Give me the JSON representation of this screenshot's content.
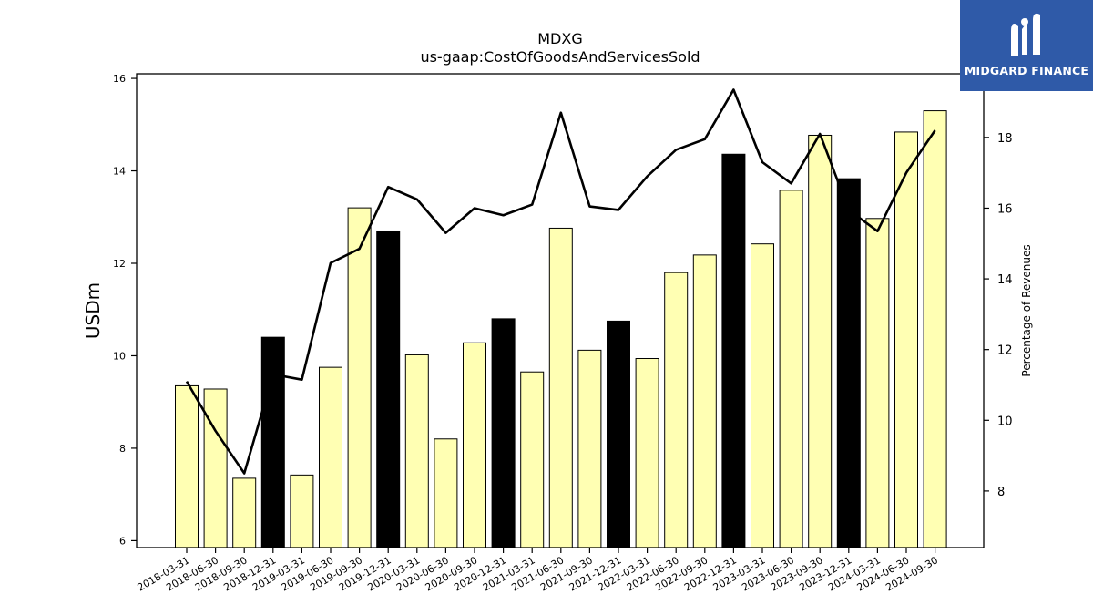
{
  "brand": {
    "name": "MIDGARD FINANCE",
    "bg_color": "#2f5aa8"
  },
  "chart_data": {
    "type": "bar",
    "title": "MDXG",
    "subtitle": "us-gaap:CostOfGoodsAndServicesSold",
    "ylabel": "USDm",
    "y2label": "Percentage of Revenues",
    "ylim": [
      5.85,
      16.1
    ],
    "y2lim": [
      6.4,
      19.8
    ],
    "yticks": [
      6,
      8,
      10,
      12,
      14,
      16
    ],
    "y2ticks": [
      8,
      10,
      12,
      14,
      16,
      18
    ],
    "categories": [
      "2018-03-31",
      "2018-06-30",
      "2018-09-30",
      "2018-12-31",
      "2019-03-31",
      "2019-06-30",
      "2019-09-30",
      "2019-12-31",
      "2020-03-31",
      "2020-06-30",
      "2020-09-30",
      "2020-12-31",
      "2021-03-31",
      "2021-06-30",
      "2021-09-30",
      "2021-12-31",
      "2022-03-31",
      "2022-06-30",
      "2022-09-30",
      "2022-12-31",
      "2023-03-31",
      "2023-06-30",
      "2023-09-30",
      "2023-12-31",
      "2024-03-31",
      "2024-06-30",
      "2024-09-30"
    ],
    "series": [
      {
        "kind": "bar",
        "values": [
          9.35,
          9.28,
          7.35,
          10.4,
          7.42,
          9.75,
          13.2,
          12.7,
          10.02,
          8.2,
          10.28,
          10.8,
          9.65,
          12.76,
          10.12,
          10.75,
          9.94,
          11.8,
          12.18,
          14.36,
          12.42,
          13.58,
          14.77,
          13.83,
          12.97,
          14.84,
          15.3
        ],
        "highlight": [
          false,
          false,
          false,
          true,
          false,
          false,
          false,
          true,
          false,
          false,
          false,
          true,
          false,
          false,
          false,
          true,
          false,
          false,
          false,
          true,
          false,
          false,
          false,
          true,
          false,
          false,
          false
        ]
      },
      {
        "kind": "line",
        "axis": "right",
        "values": [
          11.1,
          9.7,
          8.5,
          11.3,
          11.15,
          14.45,
          14.85,
          16.6,
          16.25,
          15.3,
          16.0,
          15.8,
          16.1,
          18.7,
          16.05,
          15.95,
          16.9,
          17.65,
          17.95,
          19.35,
          17.3,
          16.7,
          18.1,
          15.95,
          15.35,
          17.0,
          18.2
        ]
      }
    ],
    "colors": {
      "bar": "#ffffb3",
      "bar_highlight": "#000000",
      "line": "#000000"
    }
  }
}
